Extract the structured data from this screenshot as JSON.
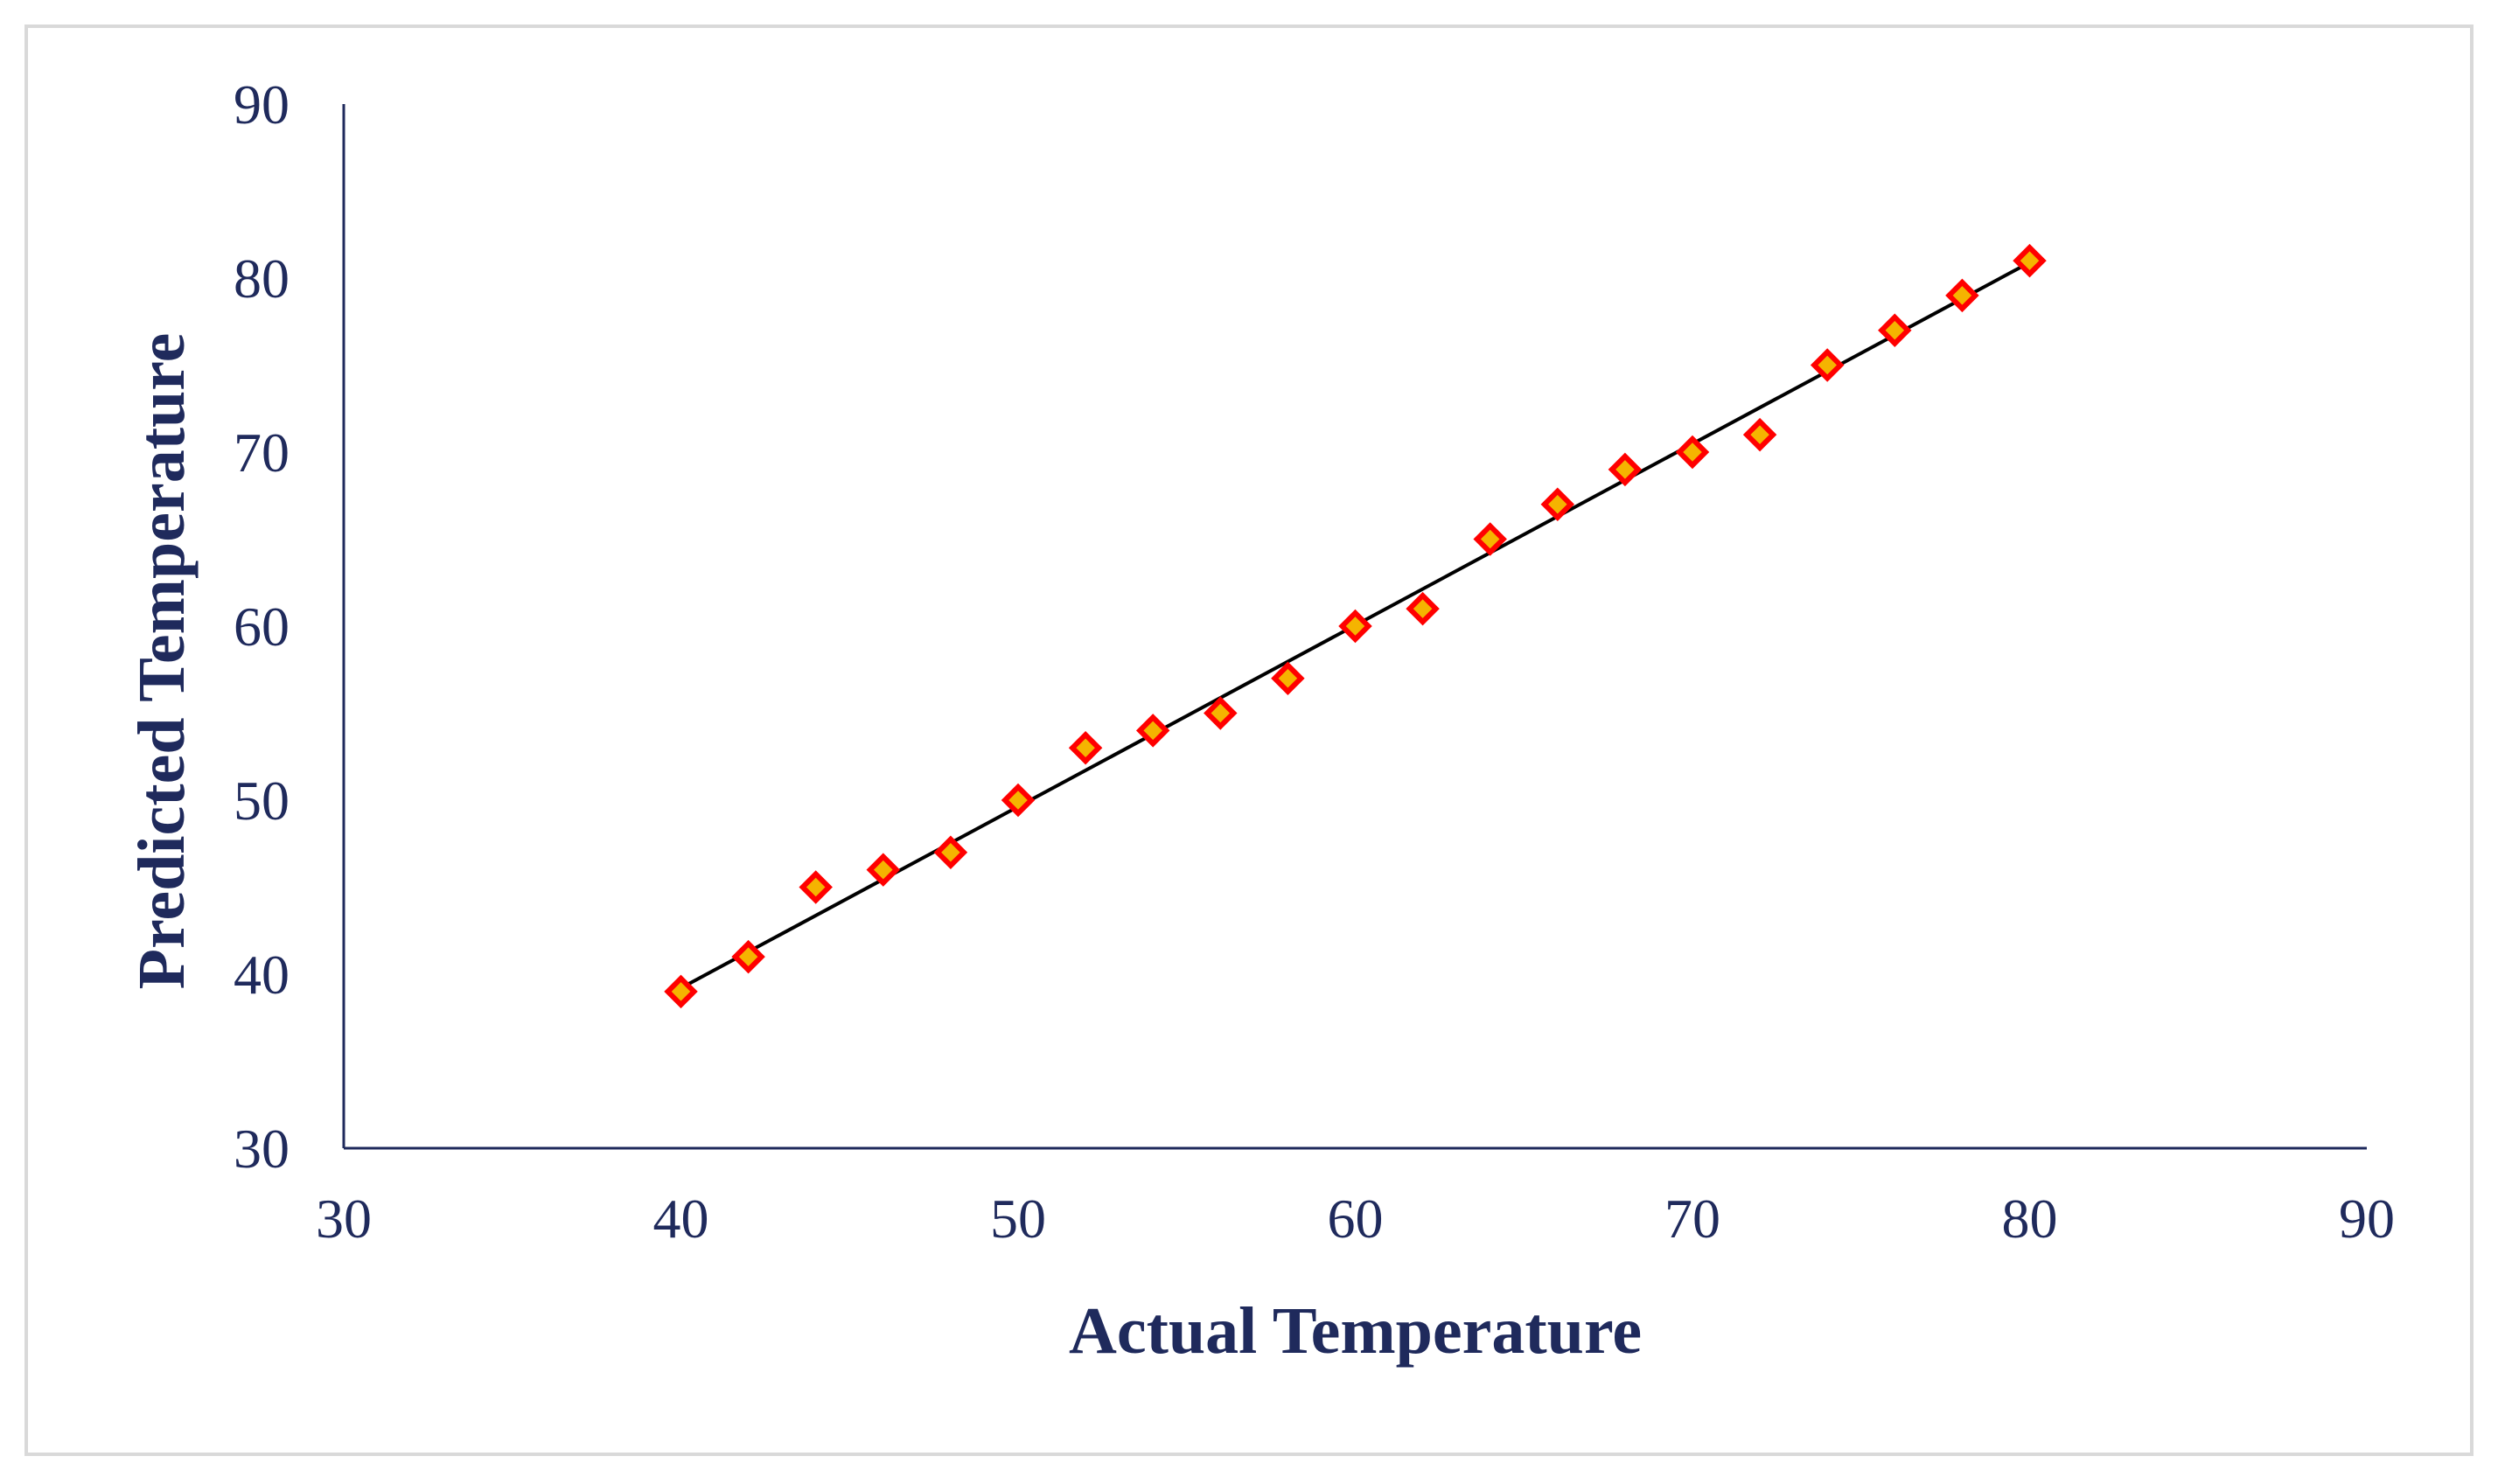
{
  "chart_data": {
    "type": "scatter",
    "xlabel": "Actual Temperature",
    "ylabel": "Predicted Temperature",
    "xlim": [
      30,
      90
    ],
    "ylim": [
      30,
      90
    ],
    "xticks": [
      30,
      40,
      50,
      60,
      70,
      80,
      90
    ],
    "yticks": [
      30,
      40,
      50,
      60,
      70,
      80,
      90
    ],
    "grid": false,
    "legend": "none",
    "series": [
      {
        "marker": "diamond",
        "fill_color": "#f5b400",
        "edge_color": "#ff0000",
        "x": [
          40,
          42,
          44,
          46,
          48,
          50,
          52,
          54,
          56,
          58,
          60,
          62,
          64,
          66,
          68,
          70,
          72,
          74,
          76,
          78,
          80
        ],
        "y": [
          39,
          41,
          45,
          46,
          47,
          50,
          53,
          54,
          55,
          57,
          60,
          61,
          65,
          67,
          69,
          70,
          71,
          75,
          77,
          79,
          81
        ]
      }
    ],
    "trendline": {
      "type": "linear",
      "color": "#000000",
      "x": [
        40,
        80
      ],
      "y": [
        39.2,
        80.9
      ]
    },
    "axis_color": "#1f2a5c",
    "text_color": "#1f2a5c"
  }
}
